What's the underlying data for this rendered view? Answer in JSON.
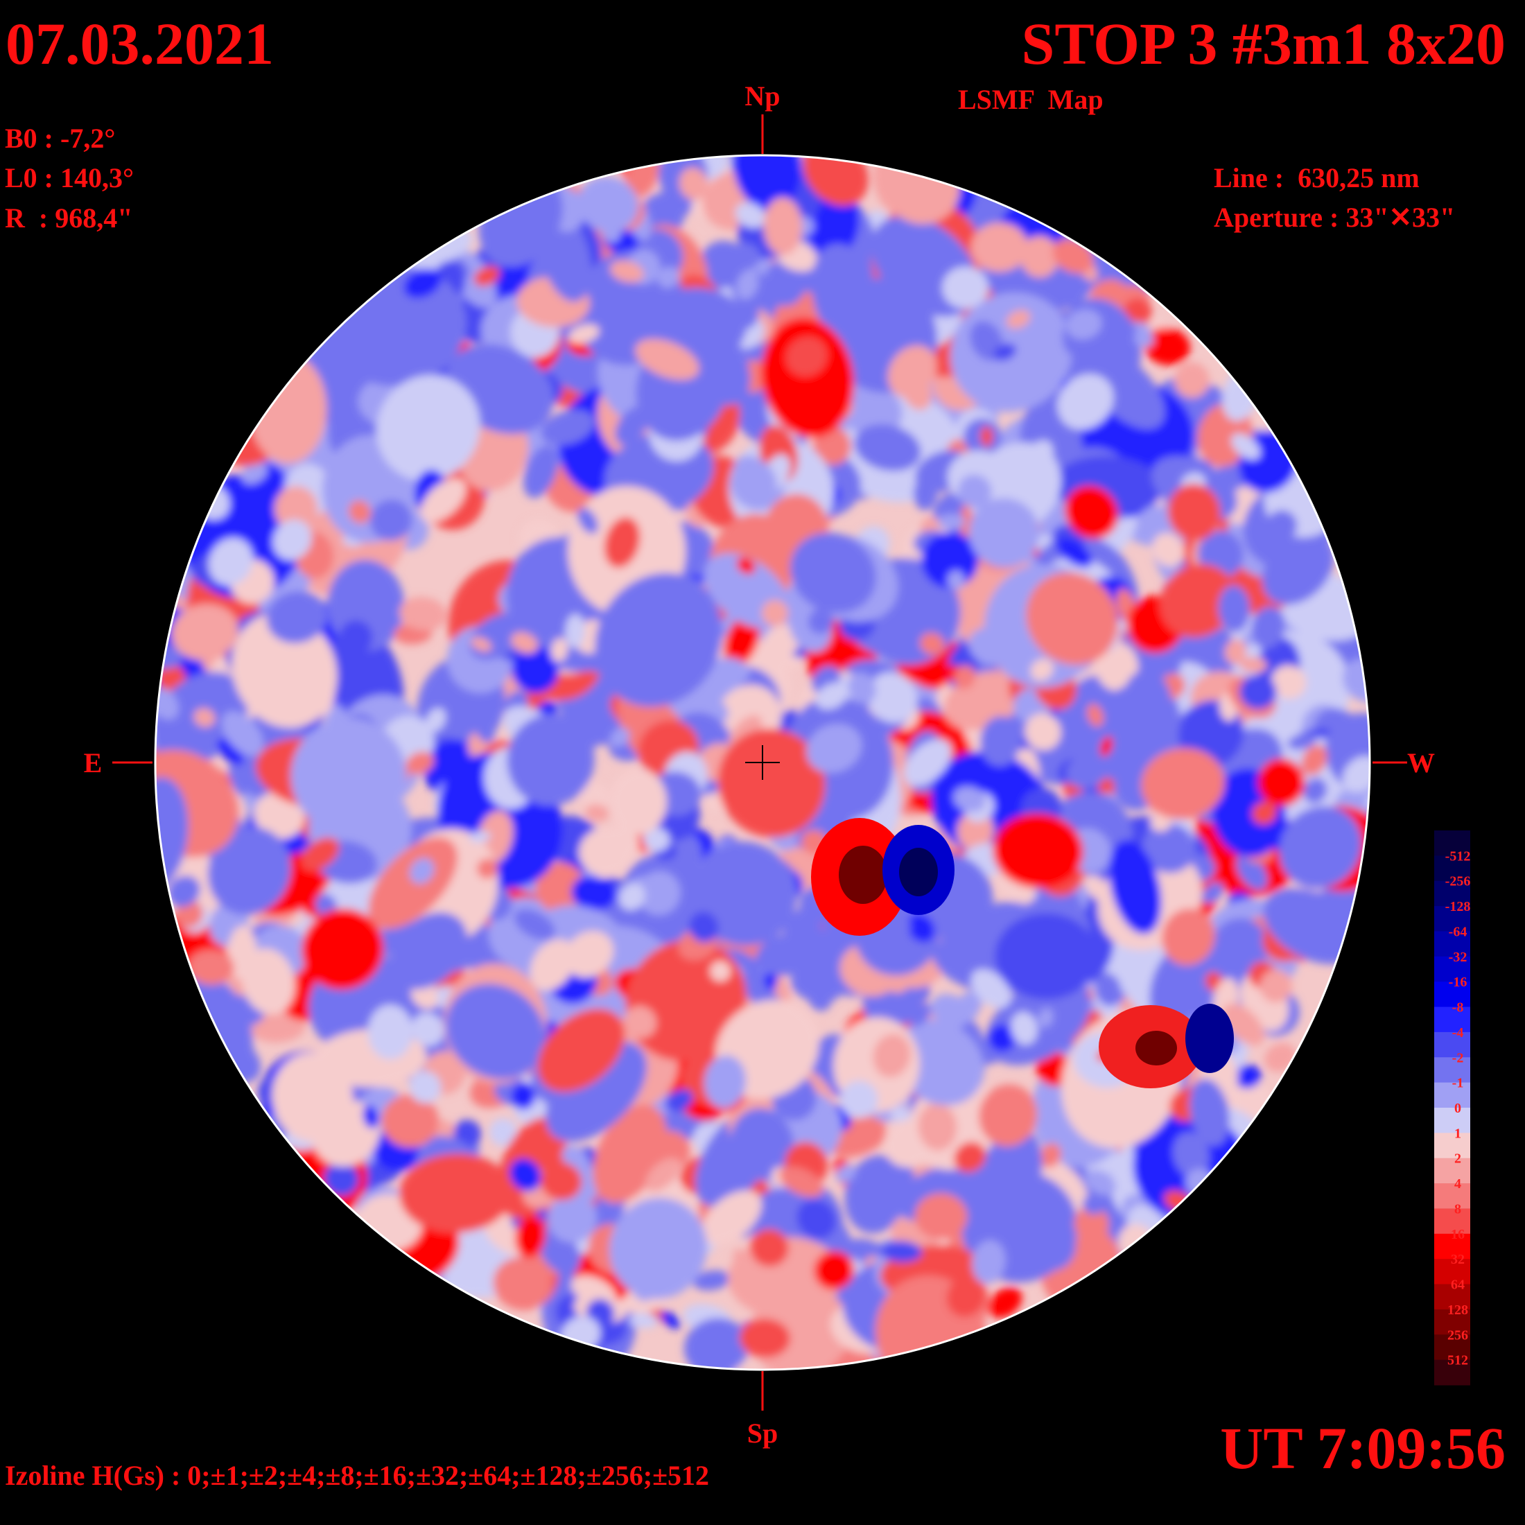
{
  "header": {
    "date": "07.03.2021",
    "title": "STOP 3 #3m1 8x20",
    "subtitle": "LSMF  Map"
  },
  "params_left": [
    "B0 : -7,2°",
    "L0 : 140,3°",
    "R  : 968,4\""
  ],
  "params_right": [
    "Line :  630,25 nm",
    "Aperture : 33\"✕33\""
  ],
  "directions": {
    "north": "Np",
    "south": "Sp",
    "east": "E",
    "west": "W"
  },
  "colorbar": {
    "labels": [
      "-512",
      "-256",
      "-128",
      "-64",
      "-32",
      "-16",
      "-8",
      "-4",
      "-2",
      "-1",
      "0",
      "1",
      "2",
      "4",
      "8",
      "16",
      "32",
      "64",
      "128",
      "256",
      "512"
    ],
    "colors": [
      "#06003a",
      "#00004e",
      "#00006c",
      "#00008c",
      "#0000ac",
      "#0000cc",
      "#0000ee",
      "#2222ff",
      "#4a4af2",
      "#7373f0",
      "#a0a0f4",
      "#cdcdf6",
      "#f6cdcd",
      "#f5a3a3",
      "#f57b7b",
      "#f54c4c",
      "#ff0000",
      "#d40000",
      "#a80000",
      "#800000",
      "#5a0000",
      "#38000a"
    ]
  },
  "footer": {
    "isolines": "Izoline H(Gs) : 0;±1;±2;±4;±8;±16;±32;±64;±128;±256;±512",
    "time": "UT 7:09:56"
  }
}
